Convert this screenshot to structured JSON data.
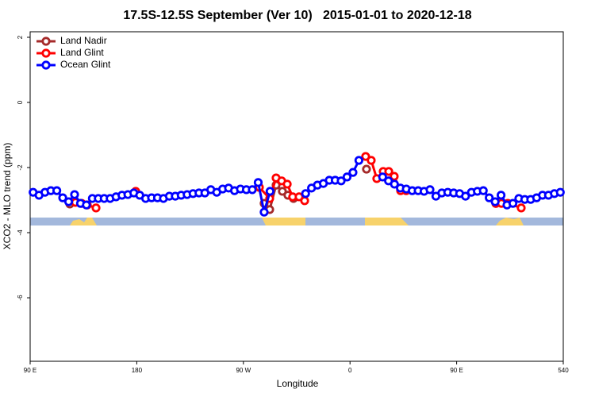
{
  "chart_data": {
    "type": "line",
    "title": "17.5S-12.5S September (Ver 10)   2015-01-01 to 2020-12-18",
    "x_label": "Longitude",
    "y_label": "XCO2 - MLO trend (ppm)",
    "xlim": [
      90,
      540
    ],
    "xticks": [
      {
        "value": 90,
        "label": "90 E"
      },
      180,
      {
        "value": 270,
        "label": "90 W"
      },
      {
        "value": 360,
        "label": "0"
      },
      {
        "value": 450,
        "label": "90 E"
      },
      540
    ],
    "ylim": [
      -7.95,
      2.17
    ],
    "yticks": [
      2,
      0,
      -2,
      -4,
      -6
    ],
    "legend": "topleft",
    "series": [
      {
        "name": "Land Nadir",
        "color": "#a52a2a",
        "x": [
          123.5,
          null,
          287.5,
          292.2,
          297.6,
          302.9,
          307.6,
          312.3,
          null,
          373.9,
          null,
          483.1
        ],
        "values": [
          -3.12,
          null,
          -3.1,
          -3.29,
          -2.54,
          -2.73,
          -2.85,
          -2.95,
          null,
          -2.05,
          null,
          -3.1
        ]
      },
      {
        "name": "Land Glint",
        "color": "#ff0000",
        "x": [
          128.2,
          133.5,
          138.2,
          145.6,
          null,
          179.1,
          null,
          283.5,
          292.2,
          297.6,
          302.3,
          307.0,
          311.6,
          317.0,
          321.7,
          null,
          373.2,
          377.9,
          382.6,
          388.0,
          392.7,
          397.3,
          402.7,
          407.4,
          null,
          483.1,
          487.8,
          493.2,
          504.5
        ],
        "values": [
          -3.07,
          -3.1,
          -3.15,
          -3.24,
          null,
          -2.73,
          null,
          -2.61,
          -2.95,
          -2.32,
          -2.41,
          -2.51,
          -2.9,
          -2.9,
          -3.02,
          null,
          -1.66,
          -1.78,
          -2.34,
          -2.12,
          -2.12,
          -2.27,
          -2.71,
          -2.71,
          null,
          -3.1,
          -3.1,
          -3.1,
          -3.24
        ]
      },
      {
        "name": "Ocean Glint",
        "color": "#0000ff",
        "x": [
          92.5,
          97.5,
          102.5,
          107.5,
          112.5,
          117.5,
          122.5,
          127.5,
          132.5,
          137.5,
          142.5,
          147.5,
          152.5,
          157.5,
          162.5,
          167.5,
          172.5,
          177.5,
          182.5,
          187.5,
          192.5,
          197.5,
          202.5,
          207.5,
          212.5,
          217.5,
          222.5,
          227.5,
          232.5,
          237.5,
          242.5,
          247.5,
          252.5,
          257.5,
          262.5,
          267.5,
          272.5,
          277.5,
          282.5,
          287.5,
          292.5,
          null,
          322.5,
          327.5,
          332.5,
          337.5,
          342.5,
          347.5,
          352.5,
          357.5,
          362.5,
          367.5,
          null,
          387.5,
          392.5,
          397.5,
          402.5,
          407.5,
          412.5,
          417.5,
          422.5,
          427.5,
          432.5,
          437.5,
          442.5,
          447.5,
          452.5,
          457.5,
          462.5,
          467.5,
          472.5,
          477.5,
          482.5,
          487.5,
          492.5,
          497.5,
          502.5,
          507.5,
          512.5,
          517.5,
          522.5,
          527.5,
          532.5,
          537.5
        ],
        "values": [
          -2.76,
          -2.85,
          -2.76,
          -2.71,
          -2.71,
          -2.93,
          -3.05,
          -2.83,
          -3.1,
          -3.15,
          -2.95,
          -2.95,
          -2.95,
          -2.95,
          -2.9,
          -2.85,
          -2.83,
          -2.78,
          -2.85,
          -2.95,
          -2.93,
          -2.93,
          -2.95,
          -2.88,
          -2.88,
          -2.85,
          -2.83,
          -2.8,
          -2.78,
          -2.78,
          -2.68,
          -2.76,
          -2.66,
          -2.63,
          -2.71,
          -2.66,
          -2.68,
          -2.68,
          -2.46,
          -3.37,
          -2.73,
          null,
          -2.8,
          -2.63,
          -2.54,
          -2.49,
          -2.39,
          -2.39,
          -2.41,
          -2.29,
          -2.15,
          -1.78,
          null,
          -2.29,
          -2.41,
          -2.51,
          -2.63,
          -2.66,
          -2.71,
          -2.71,
          -2.73,
          -2.68,
          -2.88,
          -2.78,
          -2.76,
          -2.78,
          -2.8,
          -2.88,
          -2.76,
          -2.73,
          -2.71,
          -2.93,
          -3.05,
          -2.85,
          -3.15,
          -3.1,
          -2.95,
          -2.98,
          -2.98,
          -2.93,
          -2.85,
          -2.85,
          -2.8,
          -2.76
        ]
      }
    ]
  }
}
